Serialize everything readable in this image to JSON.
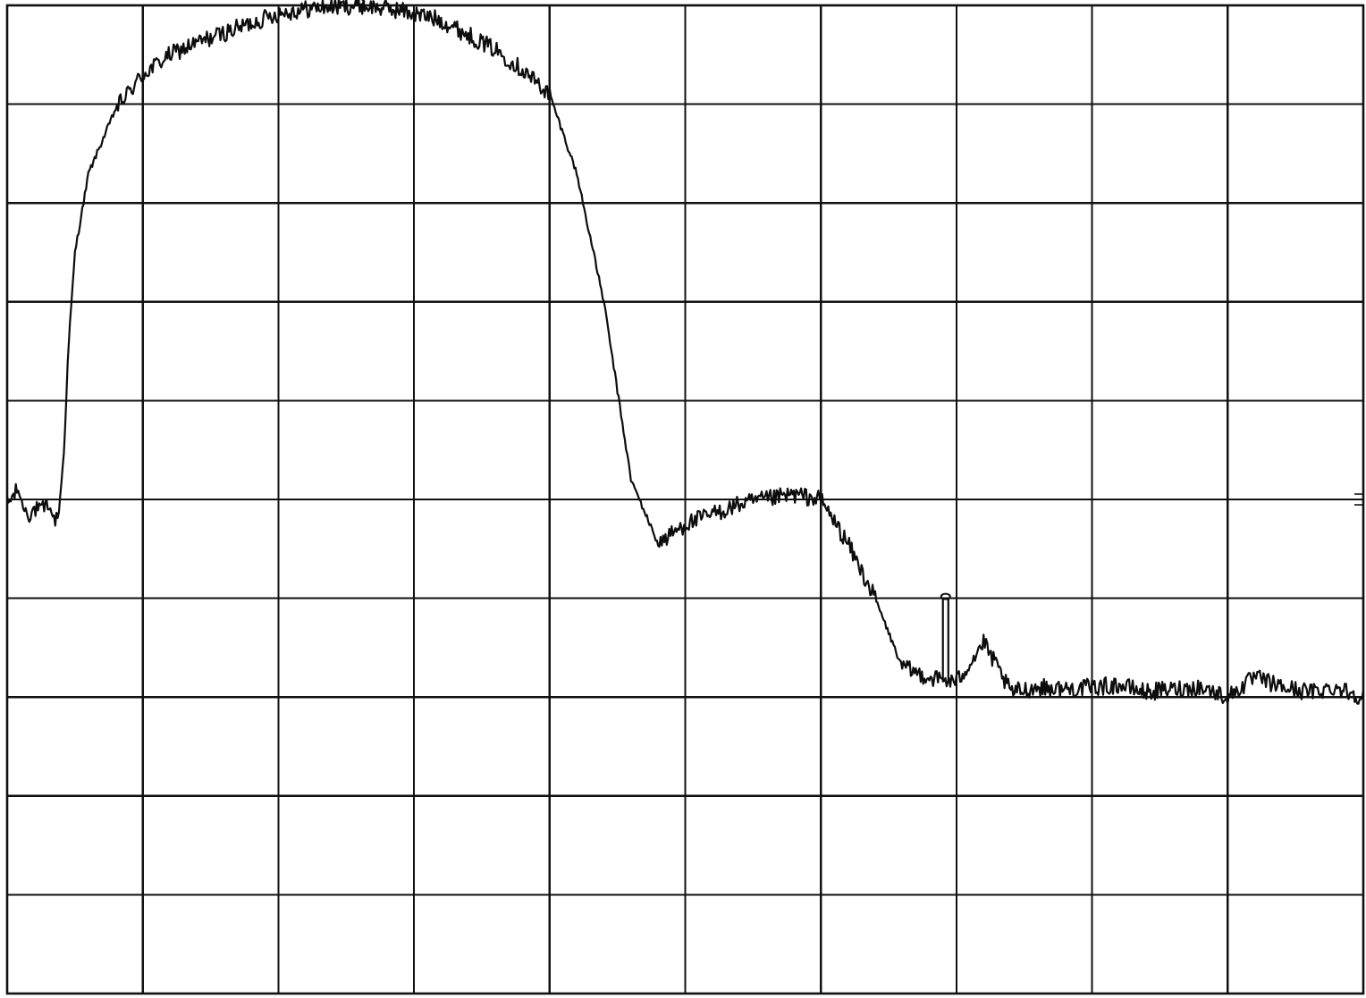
{
  "chart_data": {
    "type": "line",
    "title": "",
    "xlabel": "",
    "ylabel": "",
    "grid": true,
    "legend": "none",
    "xlim": [
      0,
      10
    ],
    "ylim": [
      0,
      10
    ],
    "x_divisions": 10,
    "y_divisions": 10,
    "line_color": "#0d0d0d",
    "grid_color": "#111111",
    "background_color": "#ffffff",
    "series": [
      {
        "x": [
          0.0,
          0.08,
          0.12,
          0.16,
          0.2,
          0.25,
          0.3,
          0.35,
          0.38,
          0.42,
          0.45,
          0.5,
          0.6,
          0.8,
          1.0,
          1.2,
          1.4,
          1.6,
          1.8,
          2.0,
          2.3,
          2.6,
          2.9,
          3.2,
          3.4,
          3.6,
          3.8,
          4.0,
          4.2,
          4.4,
          4.6,
          4.8,
          5.0,
          5.2,
          5.4,
          5.6,
          5.8,
          6.0,
          6.2,
          6.4,
          6.6,
          6.8,
          7.0,
          7.2,
          7.4,
          7.6,
          7.8,
          8.0,
          8.2,
          8.4,
          8.6,
          8.8,
          9.0,
          9.2,
          9.4,
          9.6,
          9.8,
          10.0
        ],
        "y": [
          4.95,
          5.1,
          4.92,
          4.85,
          4.9,
          4.88,
          4.95,
          4.8,
          4.85,
          5.5,
          6.5,
          7.5,
          8.3,
          8.95,
          9.3,
          9.5,
          9.62,
          9.72,
          9.82,
          9.92,
          9.98,
          10.0,
          9.95,
          9.85,
          9.7,
          9.55,
          9.35,
          9.1,
          8.3,
          7.0,
          5.2,
          4.55,
          4.75,
          4.85,
          4.95,
          5.0,
          5.05,
          5.0,
          4.55,
          4.0,
          3.3,
          3.2,
          3.15,
          3.55,
          3.05,
          3.1,
          3.08,
          3.1,
          3.12,
          3.05,
          3.08,
          3.1,
          3.0,
          3.2,
          3.1,
          3.05,
          3.1,
          3.0
        ]
      }
    ]
  }
}
